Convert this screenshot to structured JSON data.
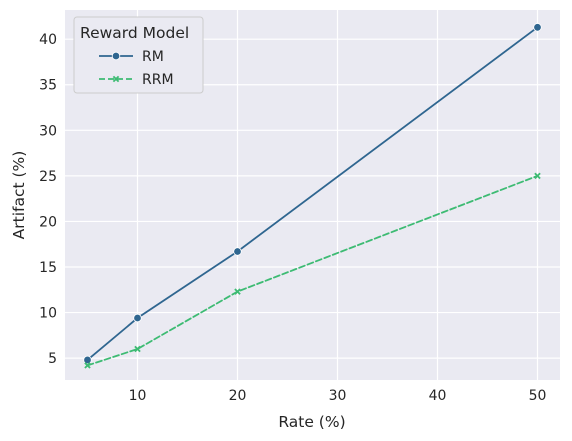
{
  "chart_data": {
    "type": "line",
    "title": "",
    "xlabel": "Rate (%)",
    "ylabel": "Artifact (%)",
    "xlim": [
      2.75,
      52.25
    ],
    "ylim": [
      2.6,
      43.2
    ],
    "xticks": [
      10,
      20,
      30,
      40,
      50
    ],
    "yticks": [
      5,
      10,
      15,
      20,
      25,
      30,
      35,
      40
    ],
    "grid": true,
    "legend": {
      "title": "Reward Model",
      "placement": "top-left"
    },
    "series": [
      {
        "name": "RM",
        "marker": "circle",
        "style": "solid",
        "color": "#2f6690",
        "x": [
          5,
          10,
          20,
          50
        ],
        "y": [
          4.8,
          9.4,
          16.7,
          41.3
        ]
      },
      {
        "name": "RRM",
        "marker": "x",
        "style": "dashed",
        "color": "#3dbb73",
        "x": [
          5,
          10,
          20,
          50
        ],
        "y": [
          4.2,
          6.0,
          12.3,
          25.0
        ]
      }
    ]
  }
}
